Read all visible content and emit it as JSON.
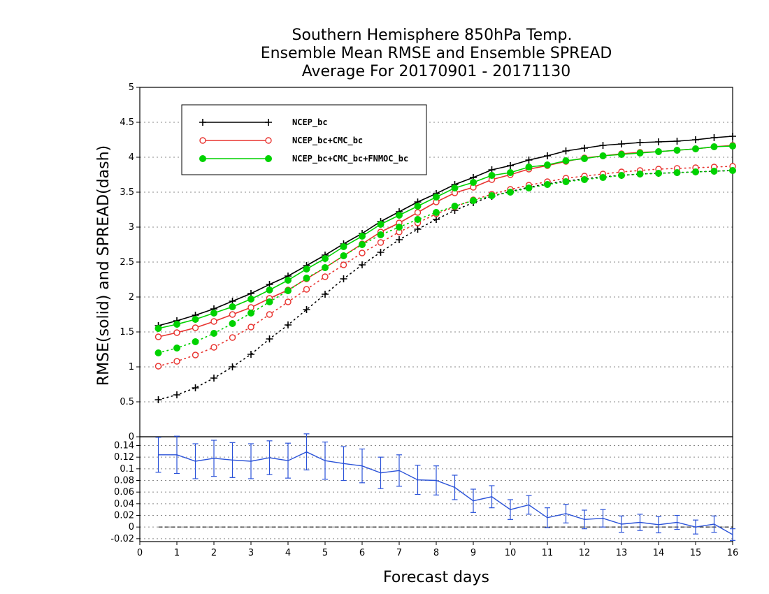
{
  "title_lines": [
    "Southern Hemisphere 850hPa Temp.",
    "Ensemble Mean RMSE and Ensemble SPREAD",
    "Average For 20170901 - 20171130"
  ],
  "colors": {
    "ncep": "#000000",
    "cmc": "#e8332f",
    "fnmoc": "#00d200",
    "diff": "#2a52d8"
  },
  "chart_data": [
    {
      "type": "line",
      "title": "Southern Hemisphere 850hPa Temp. Ensemble Mean RMSE and Ensemble SPREAD Average For 20170901 - 20171130",
      "ylabel": "RMSE(solid) and SPREAD(dash)",
      "xlabel": "Forecast days",
      "xlim": [
        0,
        16
      ],
      "ylim": [
        0,
        5
      ],
      "x_ticks": [
        "0",
        "1",
        "2",
        "3",
        "4",
        "5",
        "6",
        "7",
        "8",
        "9",
        "10",
        "11",
        "12",
        "13",
        "14",
        "15",
        "16"
      ],
      "y_ticks": [
        "0",
        "0.5",
        "1",
        "1.5",
        "2",
        "2.5",
        "3",
        "3.5",
        "4",
        "4.5",
        "5"
      ],
      "grid": true,
      "legend": "top-left",
      "x": [
        0.5,
        1,
        1.5,
        2,
        2.5,
        3,
        3.5,
        4,
        4.5,
        5,
        5.5,
        6,
        6.5,
        7,
        7.5,
        8,
        8.5,
        9,
        9.5,
        10,
        10.5,
        11,
        11.5,
        12,
        12.5,
        13,
        13.5,
        14,
        14.5,
        15,
        15.5,
        16
      ],
      "series": [
        {
          "name": "NCEP_bc",
          "style": "rmse",
          "values": [
            1.59,
            1.66,
            1.74,
            1.83,
            1.94,
            2.05,
            2.18,
            2.3,
            2.45,
            2.6,
            2.76,
            2.91,
            3.08,
            3.22,
            3.36,
            3.48,
            3.61,
            3.71,
            3.82,
            3.88,
            3.96,
            4.02,
            4.09,
            4.13,
            4.17,
            4.19,
            4.21,
            4.22,
            4.23,
            4.25,
            4.28,
            4.3
          ]
        },
        {
          "name": "NCEP_bc+CMC_bc",
          "style": "rmse",
          "values": [
            1.43,
            1.49,
            1.56,
            1.65,
            1.75,
            1.85,
            1.98,
            2.1,
            2.26,
            2.42,
            2.59,
            2.76,
            2.93,
            3.06,
            3.21,
            3.36,
            3.49,
            3.57,
            3.68,
            3.75,
            3.83,
            3.88,
            3.94,
            3.99,
            4.02,
            4.05,
            4.07,
            4.08,
            4.1,
            4.12,
            4.15,
            4.17
          ]
        },
        {
          "name": "NCEP_bc+CMC_bc+FNMOC_bc",
          "style": "rmse",
          "values": [
            1.55,
            1.61,
            1.68,
            1.77,
            1.86,
            1.97,
            2.1,
            2.24,
            2.4,
            2.55,
            2.72,
            2.87,
            3.04,
            3.17,
            3.3,
            3.43,
            3.56,
            3.64,
            3.74,
            3.78,
            3.86,
            3.89,
            3.95,
            3.98,
            4.02,
            4.04,
            4.06,
            4.08,
            4.1,
            4.12,
            4.15,
            4.16
          ]
        },
        {
          "name": "NCEP_bc",
          "style": "spread",
          "values": [
            0.53,
            0.6,
            0.7,
            0.84,
            1.0,
            1.18,
            1.4,
            1.6,
            1.82,
            2.04,
            2.26,
            2.46,
            2.64,
            2.82,
            2.97,
            3.11,
            3.24,
            3.35,
            3.44,
            3.51,
            3.57,
            3.62,
            3.66,
            3.69,
            3.72,
            3.74,
            3.76,
            3.77,
            3.78,
            3.79,
            3.8,
            3.81
          ]
        },
        {
          "name": "NCEP_bc+CMC_bc",
          "style": "spread",
          "values": [
            1.01,
            1.08,
            1.17,
            1.28,
            1.42,
            1.57,
            1.75,
            1.93,
            2.11,
            2.29,
            2.46,
            2.63,
            2.78,
            2.93,
            3.06,
            3.19,
            3.29,
            3.39,
            3.47,
            3.54,
            3.6,
            3.65,
            3.7,
            3.73,
            3.76,
            3.79,
            3.81,
            3.83,
            3.84,
            3.85,
            3.86,
            3.87
          ]
        },
        {
          "name": "NCEP_bc+CMC_bc+FNMOC_bc",
          "style": "spread",
          "values": [
            1.2,
            1.27,
            1.36,
            1.48,
            1.62,
            1.77,
            1.93,
            2.09,
            2.27,
            2.42,
            2.59,
            2.75,
            2.89,
            3.0,
            3.11,
            3.21,
            3.3,
            3.38,
            3.45,
            3.5,
            3.56,
            3.61,
            3.65,
            3.68,
            3.71,
            3.74,
            3.76,
            3.77,
            3.78,
            3.79,
            3.8,
            3.81
          ]
        }
      ]
    },
    {
      "type": "line",
      "xlabel": "Forecast days",
      "xlim": [
        0,
        16
      ],
      "ylim": [
        -0.025,
        0.155
      ],
      "y_ticks": [
        "-0.02",
        "0",
        "0.02",
        "0.04",
        "0.06",
        "0.08",
        "0.1",
        "0.12",
        "0.14"
      ],
      "x_ticks": [
        "0",
        "1",
        "2",
        "3",
        "4",
        "5",
        "6",
        "7",
        "8",
        "9",
        "10",
        "11",
        "12",
        "13",
        "14",
        "15",
        "16"
      ],
      "x": [
        0.5,
        1,
        1.5,
        2,
        2.5,
        3,
        3.5,
        4,
        4.5,
        5,
        5.5,
        6,
        6.5,
        7,
        7.5,
        8,
        8.5,
        9,
        9.5,
        10,
        10.5,
        11,
        11.5,
        12,
        12.5,
        13,
        13.5,
        14,
        14.5,
        15,
        15.5,
        16
      ],
      "values": [
        0.124,
        0.124,
        0.113,
        0.118,
        0.115,
        0.113,
        0.119,
        0.114,
        0.129,
        0.114,
        0.109,
        0.105,
        0.093,
        0.097,
        0.081,
        0.08,
        0.068,
        0.045,
        0.052,
        0.03,
        0.038,
        0.016,
        0.023,
        0.013,
        0.015,
        0.005,
        0.008,
        0.004,
        0.008,
        0.0,
        0.005,
        -0.013
      ],
      "err": [
        0.03,
        0.032,
        0.03,
        0.031,
        0.03,
        0.03,
        0.029,
        0.03,
        0.031,
        0.032,
        0.029,
        0.029,
        0.027,
        0.027,
        0.025,
        0.025,
        0.021,
        0.02,
        0.019,
        0.017,
        0.016,
        0.017,
        0.016,
        0.016,
        0.015,
        0.014,
        0.014,
        0.014,
        0.012,
        0.012,
        0.014,
        0.01
      ],
      "zero_line": true
    }
  ]
}
